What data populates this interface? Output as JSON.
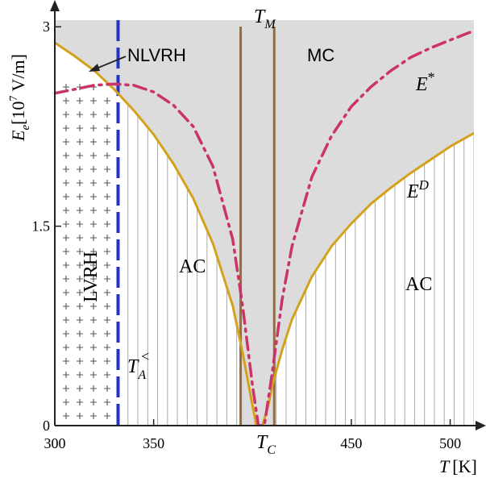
{
  "chart_data": {
    "type": "line",
    "x_range": [
      300,
      512
    ],
    "y_range": [
      0,
      3.05
    ],
    "x_ticks": [
      {
        "value": 300,
        "label": "300"
      },
      {
        "value": 350,
        "label": "350"
      },
      {
        "value": 450,
        "label": "450"
      },
      {
        "value": 500,
        "label": "500"
      }
    ],
    "y_ticks": [
      {
        "value": 0,
        "label": "0"
      },
      {
        "value": 1.5,
        "label": "1.5"
      },
      {
        "value": 3,
        "label": "3"
      }
    ],
    "xlabel": {
      "main": "T",
      "unit": "[K]"
    },
    "ylabel": {
      "main": "E",
      "sub": "e",
      "unit_pre": "[10",
      "unit_sup": "7",
      "unit_post": " V/m]"
    },
    "markers": {
      "TA": {
        "value": 332,
        "label": "T",
        "sub": "A",
        "sup": "<"
      },
      "TM": {
        "left": 394,
        "right": 411,
        "label": "T",
        "sub": "M"
      },
      "TC": {
        "label": "T",
        "sub": "C"
      }
    },
    "regions": {
      "LVRH": "LVRH",
      "NLVRH": "NLVRH",
      "MC": "MC",
      "AC_left": "AC",
      "AC_right": "AC"
    },
    "series": [
      {
        "name": "E^D",
        "label_main": "E",
        "label_sup": "D",
        "color": "#d4a21a",
        "style": "solid",
        "x": [
          300,
          310,
          320,
          330,
          340,
          350,
          360,
          370,
          380,
          390,
          395,
          400,
          402,
          405,
          408,
          410,
          415,
          420,
          430,
          440,
          450,
          460,
          470,
          480,
          490,
          500,
          512
        ],
        "y": [
          2.88,
          2.78,
          2.67,
          2.53,
          2.37,
          2.19,
          1.97,
          1.71,
          1.37,
          0.9,
          0.55,
          0.15,
          0.0,
          0.0,
          0.15,
          0.3,
          0.57,
          0.8,
          1.12,
          1.35,
          1.52,
          1.67,
          1.79,
          1.9,
          2.0,
          2.1,
          2.2
        ]
      },
      {
        "name": "E*",
        "label_main": "E",
        "label_sup": "*",
        "color": "#cc3366",
        "style": "dash-dot",
        "x": [
          300,
          310,
          320,
          330,
          340,
          350,
          360,
          370,
          380,
          390,
          395,
          400,
          403,
          406,
          410,
          415,
          420,
          430,
          440,
          450,
          460,
          470,
          480,
          490,
          500,
          512
        ],
        "y": [
          2.5,
          2.53,
          2.56,
          2.57,
          2.56,
          2.51,
          2.41,
          2.25,
          1.95,
          1.4,
          0.9,
          0.3,
          0.0,
          0.0,
          0.4,
          0.95,
          1.35,
          1.87,
          2.18,
          2.4,
          2.55,
          2.67,
          2.77,
          2.84,
          2.9,
          2.97
        ]
      }
    ]
  }
}
